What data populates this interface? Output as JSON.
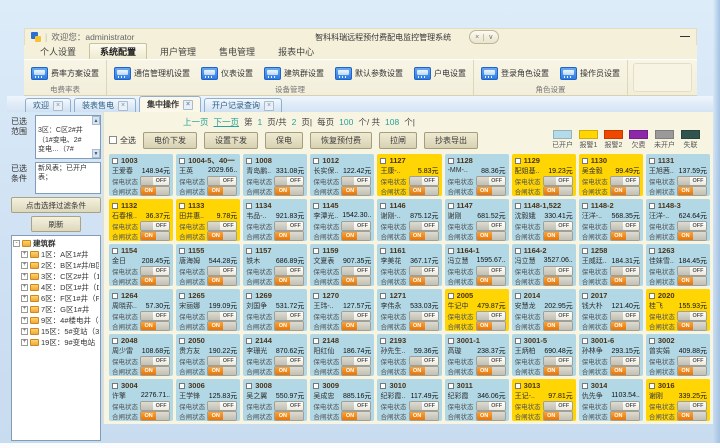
{
  "window": {
    "welcome": "欢迎您：administrator",
    "title": "智科科瑞远程预付费配电监控管理系统",
    "collapse_icon": "×",
    "dropdown_icon": "∨",
    "minimize_icon": "—"
  },
  "menu": {
    "items": [
      "个人设置",
      "系统配置",
      "用户管理",
      "售电管理",
      "报表中心"
    ],
    "active_index": 1
  },
  "ribbon": {
    "groups": [
      {
        "caption": "电费率表",
        "buttons": [
          "费率方案设置"
        ]
      },
      {
        "caption": "设备管理",
        "buttons": [
          "通信管理机设置",
          "仪表设置",
          "建筑群设置",
          "默认参数设置",
          "户电设置"
        ]
      },
      {
        "caption": "角色设置",
        "buttons": [
          "登录角色设置",
          "操作员设置"
        ]
      }
    ]
  },
  "tabs": {
    "items": [
      {
        "label": "欢迎",
        "close": "×",
        "active": false
      },
      {
        "label": "装表售电",
        "close": "×",
        "active": false
      },
      {
        "label": "集中操作",
        "close": "×",
        "active": true
      },
      {
        "label": "开户记录查询",
        "close": "×",
        "active": false
      }
    ]
  },
  "pagination": {
    "prev": "上一页",
    "next": "下一页",
    "seg1": "第",
    "p1": "1",
    "seg2": "页/共",
    "p2": "2",
    "seg3": "页|",
    "seg4": "每页",
    "p3": "100",
    "seg5": "个/ 共",
    "p4": "108",
    "seg6": "个|"
  },
  "toolbar": {
    "select_all": "全选",
    "buttons": [
      "电价下发",
      "设置下发",
      "保电",
      "恢复预付费",
      "拉闸",
      "抄表导出"
    ]
  },
  "legend": {
    "items": [
      {
        "label": "已开户",
        "color": "#b5dbe9"
      },
      {
        "label": "报警1",
        "color": "#ffd503"
      },
      {
        "label": "报警2",
        "color": "#f04800"
      },
      {
        "label": "欠费",
        "color": "#8d28a8"
      },
      {
        "label": "未开户",
        "color": "#9a9a9a"
      },
      {
        "label": "失联",
        "color": "#32544e"
      }
    ]
  },
  "sidebar": {
    "range_label": "已选\n范围",
    "range_text": "3区：C区2#井\n（1#变电、2#\n变电…（7#",
    "condition_label": "已选\n条件",
    "condition_text": "新风表；已开户表；",
    "filter_button": "点击选择过滤条件",
    "refresh_button": "刷新",
    "scroll_up": "▲",
    "scroll_down": "▼",
    "tree": {
      "root": "建筑群",
      "expand_glyph": "+",
      "collapse_glyph": "-",
      "nodes": [
        "1区：A区1#井",
        "2区：B区1#井/B区1",
        "3区：C区2#井（1#",
        "4区：D区1#井（D区",
        "6区：F区1#井（F区",
        "7区：G区1#井",
        "9区：4#楼电井（4#",
        "15区：5#变站（3#",
        "19区：9#变电站（2"
      ]
    }
  },
  "card_labels": {
    "keep": "保电状态",
    "close": "合闸状态",
    "on": "ON",
    "off": "OFF"
  },
  "meters": [
    {
      "id": "1003",
      "name": "王爱春",
      "bal": "148.94元",
      "st": "open"
    },
    {
      "id": "1004-5、40一",
      "name": "王英",
      "bal": "2029.66..",
      "st": "open"
    },
    {
      "id": "1008",
      "name": "青岛鹏..",
      "bal": "331.08元",
      "st": "open"
    },
    {
      "id": "1012",
      "name": "长实保..",
      "bal": "122.42元",
      "st": "open"
    },
    {
      "id": "1127",
      "name": "王康-..",
      "bal": "5.83元",
      "st": "a1"
    },
    {
      "id": "1128",
      "name": "-MM-..",
      "bal": "88.36元",
      "st": "open"
    },
    {
      "id": "1129",
      "name": "配姐基..",
      "bal": "19.23元",
      "st": "a1"
    },
    {
      "id": "1130",
      "name": "吴金毅",
      "bal": "99.49元",
      "st": "a1"
    },
    {
      "id": "1131",
      "name": "王旭茜..",
      "bal": "137.59元",
      "st": "open"
    },
    {
      "id": "1132",
      "name": "石春根..",
      "bal": "36.37元",
      "st": "a1"
    },
    {
      "id": "1133",
      "name": "田井惠..",
      "bal": "9.78元",
      "st": "a1"
    },
    {
      "id": "1134",
      "name": "韦品-..",
      "bal": "921.83元",
      "st": "open"
    },
    {
      "id": "1145",
      "name": "李潭光..",
      "bal": "1542.30..",
      "st": "open"
    },
    {
      "id": "1146",
      "name": "谢刚-..",
      "bal": "875.12元",
      "st": "open"
    },
    {
      "id": "1147",
      "name": "谢刚",
      "bal": "681.52元",
      "st": "open"
    },
    {
      "id": "1148-1,522",
      "name": "沈毅娥",
      "bal": "330.41元",
      "st": "open"
    },
    {
      "id": "1148-2",
      "name": "汪洋-..",
      "bal": "568.35元",
      "st": "open"
    },
    {
      "id": "1148-3",
      "name": "汪洋-..",
      "bal": "624.64元",
      "st": "open"
    },
    {
      "id": "1154",
      "name": "金日",
      "bal": "208.45元",
      "st": "open"
    },
    {
      "id": "1155",
      "name": "唐海姆",
      "bal": "544.28元",
      "st": "open"
    },
    {
      "id": "1157",
      "name": "铁木",
      "bal": "686.89元",
      "st": "open"
    },
    {
      "id": "1159",
      "name": "文夏表",
      "bal": "907.35元",
      "st": "open"
    },
    {
      "id": "1161",
      "name": "李美花",
      "bal": "367.17元",
      "st": "open"
    },
    {
      "id": "1164-1",
      "name": "冯立慧",
      "bal": "1595.67..",
      "st": "open"
    },
    {
      "id": "1164-2",
      "name": "冯立慧",
      "bal": "3527.06..",
      "st": "open"
    },
    {
      "id": "1258",
      "name": "王威廷..",
      "bal": "184.31元",
      "st": "open"
    },
    {
      "id": "1263",
      "name": "佳妹雪..",
      "bal": "184.45元",
      "st": "open"
    },
    {
      "id": "1264",
      "name": "周晓荪..",
      "bal": "57.30元",
      "st": "open"
    },
    {
      "id": "1265",
      "name": "宋丽娜",
      "bal": "199.09元",
      "st": "open"
    },
    {
      "id": "1269",
      "name": "刘国争",
      "bal": "531.72元",
      "st": "open"
    },
    {
      "id": "1270",
      "name": "王玮-..",
      "bal": "127.57元",
      "st": "open"
    },
    {
      "id": "1271",
      "name": "李伟永",
      "bal": "533.03元",
      "st": "open"
    },
    {
      "id": "2005",
      "name": "牛记中",
      "bal": "479.87元",
      "st": "a1"
    },
    {
      "id": "2014",
      "name": "安慧龙",
      "bal": "202.95元",
      "st": "open"
    },
    {
      "id": "2017",
      "name": "钱大朴",
      "bal": "121.40元",
      "st": "open"
    },
    {
      "id": "2020",
      "name": "桂飞",
      "bal": "155.93元",
      "st": "a1"
    },
    {
      "id": "2048",
      "name": "周少雷",
      "bal": "108.68元",
      "st": "open"
    },
    {
      "id": "2050",
      "name": "贵方友",
      "bal": "190.22元",
      "st": "open"
    },
    {
      "id": "2144",
      "name": "李珊光",
      "bal": "870.62元",
      "st": "open"
    },
    {
      "id": "2148",
      "name": "阳红仙",
      "bal": "186.74元",
      "st": "open"
    },
    {
      "id": "2193",
      "name": "孙先生..",
      "bal": "59.36元",
      "st": "open"
    },
    {
      "id": "3001-1",
      "name": "高璇",
      "bal": "238.37元",
      "st": "open"
    },
    {
      "id": "3001-5",
      "name": "王炳柏",
      "bal": "690.48元",
      "st": "open"
    },
    {
      "id": "3001-6",
      "name": "孙林争",
      "bal": "293.15元",
      "st": "open"
    },
    {
      "id": "3002",
      "name": "曾实娟",
      "bal": "409.88元",
      "st": "open"
    },
    {
      "id": "3004",
      "name": "许擎",
      "bal": "2276.71..",
      "st": "open"
    },
    {
      "id": "3006",
      "name": "王学锋",
      "bal": "125.83元",
      "st": "open"
    },
    {
      "id": "3008",
      "name": "吴之翼",
      "bal": "550.97元",
      "st": "open"
    },
    {
      "id": "3009",
      "name": "吴成忠",
      "bal": "885.16元",
      "st": "open"
    },
    {
      "id": "3010",
      "name": "纪彩霞..",
      "bal": "117.49元",
      "st": "open"
    },
    {
      "id": "3011",
      "name": "纪彩霞",
      "bal": "346.06元",
      "st": "open"
    },
    {
      "id": "3013",
      "name": "王记-..",
      "bal": "97.81元",
      "st": "a1"
    },
    {
      "id": "3014",
      "name": "仇先争",
      "bal": "1103.54..",
      "st": "open"
    },
    {
      "id": "3016",
      "name": "谢刚",
      "bal": "339.25元",
      "st": "a1"
    }
  ]
}
